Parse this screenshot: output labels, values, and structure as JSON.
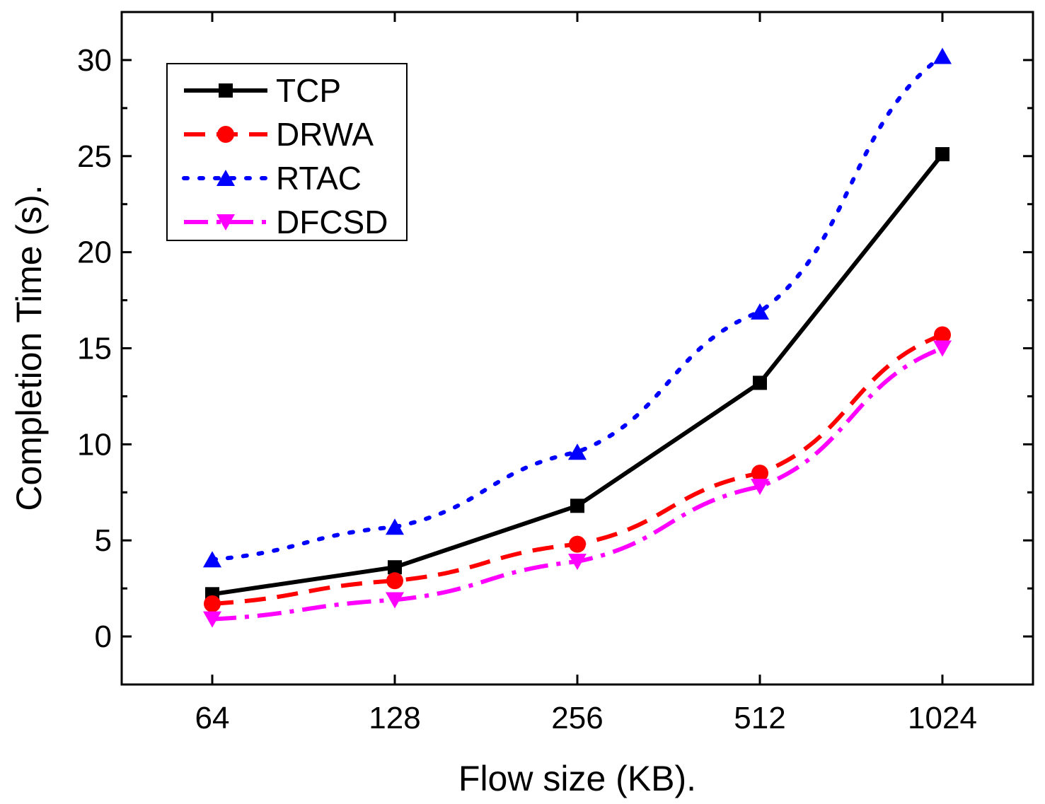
{
  "chart_data": {
    "type": "line",
    "title": "",
    "xlabel": "Flow size (KB).",
    "ylabel": "Completion Time (s).",
    "categories": [
      "64",
      "128",
      "256",
      "512",
      "1024"
    ],
    "ylim": [
      -2.5,
      32.5
    ],
    "yticks": [
      0,
      5,
      10,
      15,
      20,
      25,
      30
    ],
    "grid": false,
    "legend_position": "top-left",
    "series": [
      {
        "name": "TCP",
        "color": "#000000",
        "dash": "solid",
        "marker": "square",
        "values": [
          2.2,
          3.6,
          6.8,
          13.2,
          25.1
        ]
      },
      {
        "name": "DRWA",
        "color": "#ff0000",
        "dash": "dash",
        "marker": "circle",
        "values": [
          1.7,
          2.9,
          4.8,
          8.5,
          15.7
        ]
      },
      {
        "name": "RTAC",
        "color": "#0000ff",
        "dash": "dot",
        "marker": "triangle-up",
        "values": [
          4.0,
          5.7,
          9.6,
          16.9,
          30.2
        ]
      },
      {
        "name": "DFCSD",
        "color": "#ff00ff",
        "dash": "dashdot",
        "marker": "triangle-down",
        "values": [
          0.9,
          1.9,
          3.9,
          7.8,
          15.0
        ]
      }
    ]
  }
}
